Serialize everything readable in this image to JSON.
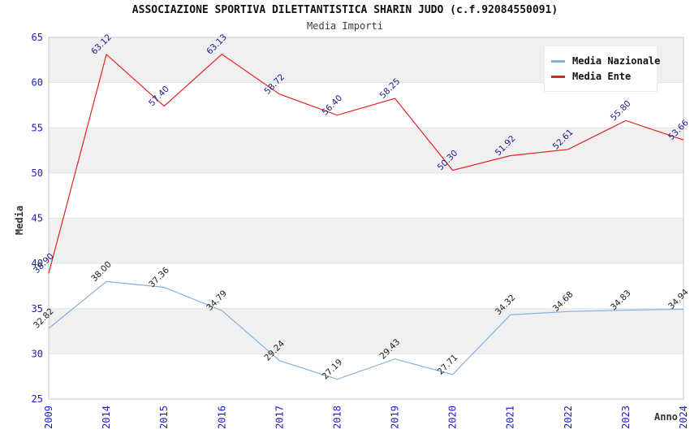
{
  "title": "ASSOCIAZIONE SPORTIVA DILETTANTISTICA SHARIN JUDO (c.f.92084550091)",
  "subtitle": "Media Importi",
  "chart_data": {
    "type": "line",
    "title": "ASSOCIAZIONE SPORTIVA DILETTANTISTICA SHARIN JUDO (c.f.92084550091)",
    "subtitle": "Media Importi",
    "xlabel": "Anno",
    "ylabel": "Media",
    "categories": [
      "2009",
      "2014",
      "2015",
      "2016",
      "2017",
      "2018",
      "2019",
      "2020",
      "2021",
      "2022",
      "2023",
      "2024"
    ],
    "ylim": [
      25,
      65
    ],
    "ytick_step": 5,
    "grid": "horizontal-bands",
    "legend_position": "top-right",
    "series": [
      {
        "name": "Media Nazionale",
        "color": "#82b1e0",
        "label_color": "#1c1c1c",
        "values": [
          32.82,
          38.0,
          37.36,
          34.79,
          29.24,
          27.19,
          29.43,
          27.71,
          34.32,
          34.68,
          34.83,
          34.94
        ]
      },
      {
        "name": "Media Ente",
        "color": "#e32222",
        "label_color": "#1a1a8c",
        "values": [
          38.9,
          63.12,
          57.4,
          63.13,
          58.72,
          56.4,
          58.25,
          50.3,
          51.92,
          52.61,
          55.8,
          53.66
        ]
      }
    ]
  },
  "colors": {
    "tick_label": "#1c1ccc",
    "band_gray": "#f0f0f0",
    "band_white": "#ffffff",
    "grid_line": "#e2e2e2",
    "plot_border": "#c8c8c8",
    "axis_title": "#333333"
  }
}
